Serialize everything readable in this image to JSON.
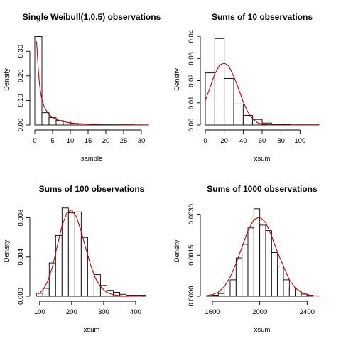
{
  "colors": {
    "bar_stroke": "#000000",
    "bar_fill": "#ffffff",
    "density_curve": "#cc0000",
    "background": "#ffffff"
  },
  "chart_data": [
    {
      "type": "bar",
      "subtype": "histogram_with_density",
      "title": "Single Weibull(1,0.5) observations",
      "xlabel": "sample",
      "ylabel": "Density",
      "xlim": [
        0,
        32
      ],
      "ylim": [
        0,
        0.37
      ],
      "xticks": [
        0,
        5,
        10,
        15,
        20,
        25,
        30
      ],
      "yticks": [
        0.0,
        0.1,
        0.2,
        0.3
      ],
      "ytick_labels": [
        "0.00",
        "0.10",
        "0.20",
        "0.30"
      ],
      "grid": false,
      "bins": [
        {
          "x0": 0,
          "x1": 2,
          "density": 0.36
        },
        {
          "x0": 2,
          "x1": 4,
          "density": 0.05
        },
        {
          "x0": 4,
          "x1": 6,
          "density": 0.03
        },
        {
          "x0": 6,
          "x1": 8,
          "density": 0.018
        },
        {
          "x0": 8,
          "x1": 10,
          "density": 0.016
        },
        {
          "x0": 10,
          "x1": 12,
          "density": 0.006
        },
        {
          "x0": 12,
          "x1": 14,
          "density": 0.004
        },
        {
          "x0": 14,
          "x1": 16,
          "density": 0.004
        },
        {
          "x0": 16,
          "x1": 18,
          "density": 0.002
        },
        {
          "x0": 18,
          "x1": 20,
          "density": 0.002
        },
        {
          "x0": 20,
          "x1": 22,
          "density": 0.001
        },
        {
          "x0": 22,
          "x1": 24,
          "density": 0.001
        },
        {
          "x0": 24,
          "x1": 26,
          "density": 0.001
        },
        {
          "x0": 26,
          "x1": 28,
          "density": 0.001
        },
        {
          "x0": 28,
          "x1": 30,
          "density": 0.004
        },
        {
          "x0": 30,
          "x1": 32,
          "density": 0.004
        }
      ],
      "curve": {
        "x": [
          0.5,
          0.8,
          1,
          1.3,
          1.6,
          2,
          2.5,
          3,
          4,
          5,
          6,
          8,
          10,
          12,
          15,
          20,
          25,
          30,
          32
        ],
        "y": [
          0.34,
          0.27,
          0.22,
          0.17,
          0.135,
          0.105,
          0.08,
          0.064,
          0.043,
          0.031,
          0.023,
          0.014,
          0.009,
          0.006,
          0.0035,
          0.0015,
          0.0007,
          0.0003,
          0.0002
        ]
      }
    },
    {
      "type": "bar",
      "subtype": "histogram_with_density",
      "title": "Sums of 10 observations",
      "xlabel": "xsum",
      "ylabel": "Density",
      "xlim": [
        0,
        120
      ],
      "ylim": [
        0,
        0.041
      ],
      "xticks": [
        0,
        20,
        40,
        60,
        80,
        100
      ],
      "yticks": [
        0.0,
        0.01,
        0.02,
        0.03,
        0.04
      ],
      "ytick_labels": [
        "0.00",
        "0.01",
        "0.02",
        "0.03",
        "0.04"
      ],
      "grid": false,
      "bins": [
        {
          "x0": 0,
          "x1": 10,
          "density": 0.0235
        },
        {
          "x0": 10,
          "x1": 20,
          "density": 0.039
        },
        {
          "x0": 20,
          "x1": 30,
          "density": 0.021
        },
        {
          "x0": 30,
          "x1": 40,
          "density": 0.0095
        },
        {
          "x0": 40,
          "x1": 50,
          "density": 0.0043
        },
        {
          "x0": 50,
          "x1": 60,
          "density": 0.0025
        },
        {
          "x0": 60,
          "x1": 70,
          "density": 0.0009
        },
        {
          "x0": 70,
          "x1": 80,
          "density": 0.0003
        },
        {
          "x0": 80,
          "x1": 90,
          "density": 0.0002
        },
        {
          "x0": 90,
          "x1": 100,
          "density": 0.0001
        },
        {
          "x0": 100,
          "x1": 110,
          "density": 0.0001
        },
        {
          "x0": 110,
          "x1": 120,
          "density": 0.0001
        }
      ],
      "curve": {
        "x": [
          0,
          5,
          10,
          15,
          20,
          25,
          30,
          35,
          40,
          45,
          50,
          55,
          60,
          70,
          80,
          100,
          120
        ],
        "y": [
          0.011,
          0.017,
          0.023,
          0.027,
          0.028,
          0.0265,
          0.022,
          0.0165,
          0.0105,
          0.0058,
          0.0028,
          0.0011,
          0.0004,
          5e-05,
          0.0,
          0.0,
          0.0
        ]
      }
    },
    {
      "type": "bar",
      "subtype": "histogram_with_density",
      "title": "Sums of 100 observations",
      "xlabel": "xsum",
      "ylabel": "Density",
      "xlim": [
        85,
        440
      ],
      "ylim": [
        0,
        0.0092
      ],
      "xticks": [
        100,
        200,
        300,
        400
      ],
      "yticks": [
        0.0,
        0.004,
        0.008
      ],
      "ytick_labels": [
        "0.000",
        "0.004",
        "0.008"
      ],
      "grid": false,
      "bins": [
        {
          "x0": 90,
          "x1": 110,
          "density": 0.0003
        },
        {
          "x0": 110,
          "x1": 130,
          "density": 0.0008
        },
        {
          "x0": 130,
          "x1": 150,
          "density": 0.0034
        },
        {
          "x0": 150,
          "x1": 170,
          "density": 0.0062
        },
        {
          "x0": 170,
          "x1": 190,
          "density": 0.009
        },
        {
          "x0": 190,
          "x1": 210,
          "density": 0.0085
        },
        {
          "x0": 210,
          "x1": 230,
          "density": 0.0086
        },
        {
          "x0": 230,
          "x1": 250,
          "density": 0.006
        },
        {
          "x0": 250,
          "x1": 270,
          "density": 0.0038
        },
        {
          "x0": 270,
          "x1": 290,
          "density": 0.0022
        },
        {
          "x0": 290,
          "x1": 310,
          "density": 0.0011
        },
        {
          "x0": 310,
          "x1": 330,
          "density": 0.0006
        },
        {
          "x0": 330,
          "x1": 350,
          "density": 0.0004
        },
        {
          "x0": 350,
          "x1": 370,
          "density": 0.0002
        },
        {
          "x0": 370,
          "x1": 390,
          "density": 0.0001
        },
        {
          "x0": 390,
          "x1": 410,
          "density": 0.0001
        },
        {
          "x0": 410,
          "x1": 430,
          "density": 0.0001
        }
      ],
      "curve": {
        "x": [
          95,
          110,
          125,
          140,
          155,
          170,
          185,
          200,
          215,
          230,
          245,
          260,
          275,
          290,
          305,
          320,
          340,
          360,
          380,
          400,
          420
        ],
        "y": [
          0.0002,
          0.0006,
          0.0015,
          0.003,
          0.0051,
          0.0072,
          0.0085,
          0.0088,
          0.0081,
          0.0066,
          0.0048,
          0.0031,
          0.0018,
          0.001,
          0.0005,
          0.00025,
          0.0001,
          4e-05,
          2e-05,
          1e-05,
          0.0
        ]
      }
    },
    {
      "type": "bar",
      "subtype": "histogram_with_density",
      "title": "Sums of 1000 observations",
      "xlabel": "xsum",
      "ylabel": "Density",
      "xlim": [
        1540,
        2500
      ],
      "ylim": [
        0,
        0.0033
      ],
      "xticks": [
        1600,
        2000,
        2400
      ],
      "yticks": [
        0.0,
        0.0015,
        0.003
      ],
      "ytick_labels": [
        "0.0000",
        "0.0015",
        "0.0030"
      ],
      "grid": false,
      "bins": [
        {
          "x0": 1550,
          "x1": 1600,
          "density": 2e-05
        },
        {
          "x0": 1600,
          "x1": 1650,
          "density": 4e-05
        },
        {
          "x0": 1650,
          "x1": 1700,
          "density": 0.0001
        },
        {
          "x0": 1700,
          "x1": 1750,
          "density": 0.0003
        },
        {
          "x0": 1750,
          "x1": 1800,
          "density": 0.0006
        },
        {
          "x0": 1800,
          "x1": 1850,
          "density": 0.0014
        },
        {
          "x0": 1850,
          "x1": 1900,
          "density": 0.0019
        },
        {
          "x0": 1900,
          "x1": 1950,
          "density": 0.0025
        },
        {
          "x0": 1950,
          "x1": 2000,
          "density": 0.0032
        },
        {
          "x0": 2000,
          "x1": 2050,
          "density": 0.0026
        },
        {
          "x0": 2050,
          "x1": 2100,
          "density": 0.0024
        },
        {
          "x0": 2100,
          "x1": 2150,
          "density": 0.0016
        },
        {
          "x0": 2150,
          "x1": 2200,
          "density": 0.0011
        },
        {
          "x0": 2200,
          "x1": 2250,
          "density": 0.0006
        },
        {
          "x0": 2250,
          "x1": 2300,
          "density": 0.0003
        },
        {
          "x0": 2300,
          "x1": 2350,
          "density": 0.0002
        },
        {
          "x0": 2350,
          "x1": 2400,
          "density": 8e-05
        },
        {
          "x0": 2400,
          "x1": 2450,
          "density": 4e-05
        }
      ],
      "curve": {
        "x": [
          1550,
          1600,
          1650,
          1700,
          1750,
          1800,
          1850,
          1900,
          1950,
          2000,
          2050,
          2100,
          2150,
          2200,
          2250,
          2300,
          2350,
          2400,
          2450,
          2500
        ],
        "y": [
          2e-05,
          6e-05,
          0.00015,
          0.00035,
          0.0007,
          0.0012,
          0.0018,
          0.0024,
          0.0028,
          0.0029,
          0.0027,
          0.0022,
          0.0016,
          0.0011,
          0.0006,
          0.0003,
          0.00014,
          6e-05,
          2e-05,
          1e-05
        ]
      }
    }
  ]
}
